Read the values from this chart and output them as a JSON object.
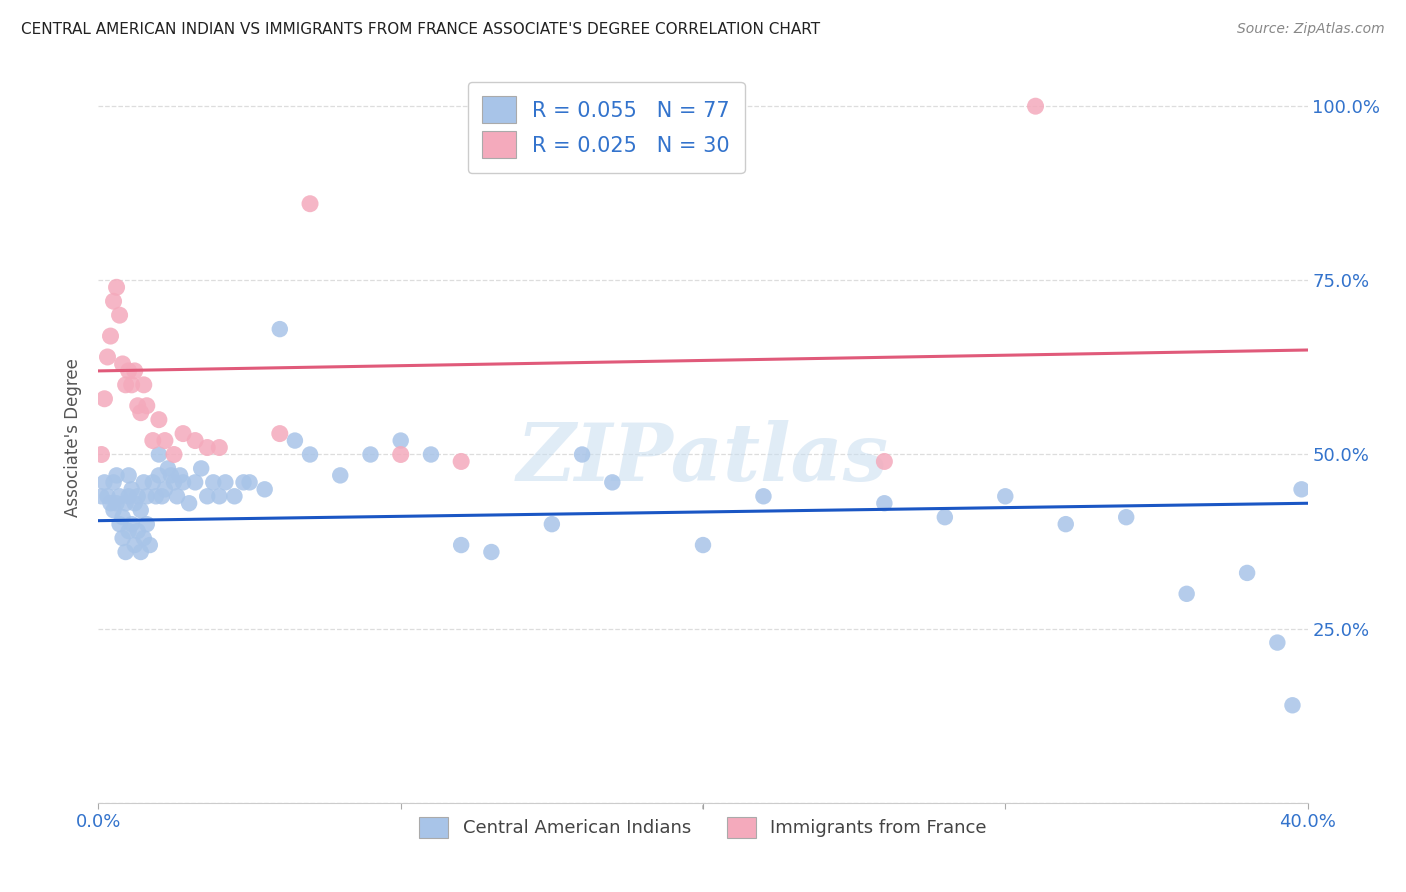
{
  "title": "CENTRAL AMERICAN INDIAN VS IMMIGRANTS FROM FRANCE ASSOCIATE'S DEGREE CORRELATION CHART",
  "source": "Source: ZipAtlas.com",
  "ylabel": "Associate's Degree",
  "xlim": [
    0.0,
    0.4
  ],
  "ylim": [
    0.0,
    1.05
  ],
  "blue_R": 0.055,
  "blue_N": 77,
  "pink_R": 0.025,
  "pink_N": 30,
  "blue_color": "#a8c4e8",
  "pink_color": "#f4aabc",
  "blue_line_color": "#1a56c4",
  "pink_line_color": "#e05a7a",
  "title_color": "#222222",
  "source_color": "#888888",
  "axis_label_color": "#3373cc",
  "watermark_color": "#c8ddf0",
  "watermark": "ZIPatlas",
  "blue_x": [
    0.001,
    0.002,
    0.003,
    0.004,
    0.005,
    0.005,
    0.006,
    0.006,
    0.007,
    0.007,
    0.008,
    0.008,
    0.009,
    0.009,
    0.01,
    0.01,
    0.01,
    0.011,
    0.011,
    0.012,
    0.012,
    0.013,
    0.013,
    0.014,
    0.014,
    0.015,
    0.015,
    0.016,
    0.016,
    0.017,
    0.018,
    0.019,
    0.02,
    0.02,
    0.021,
    0.022,
    0.023,
    0.024,
    0.025,
    0.026,
    0.027,
    0.028,
    0.03,
    0.032,
    0.034,
    0.036,
    0.038,
    0.04,
    0.042,
    0.045,
    0.048,
    0.05,
    0.055,
    0.06,
    0.065,
    0.07,
    0.08,
    0.09,
    0.1,
    0.11,
    0.12,
    0.13,
    0.15,
    0.16,
    0.17,
    0.2,
    0.22,
    0.26,
    0.28,
    0.3,
    0.32,
    0.34,
    0.36,
    0.38,
    0.39,
    0.395,
    0.398
  ],
  "blue_y": [
    0.44,
    0.46,
    0.44,
    0.43,
    0.42,
    0.46,
    0.43,
    0.47,
    0.4,
    0.44,
    0.38,
    0.41,
    0.36,
    0.43,
    0.39,
    0.44,
    0.47,
    0.4,
    0.45,
    0.37,
    0.43,
    0.39,
    0.44,
    0.36,
    0.42,
    0.38,
    0.46,
    0.4,
    0.44,
    0.37,
    0.46,
    0.44,
    0.47,
    0.5,
    0.44,
    0.45,
    0.48,
    0.47,
    0.46,
    0.44,
    0.47,
    0.46,
    0.43,
    0.46,
    0.48,
    0.44,
    0.46,
    0.44,
    0.46,
    0.44,
    0.46,
    0.46,
    0.45,
    0.68,
    0.52,
    0.5,
    0.47,
    0.5,
    0.52,
    0.5,
    0.37,
    0.36,
    0.4,
    0.5,
    0.46,
    0.37,
    0.44,
    0.43,
    0.41,
    0.44,
    0.4,
    0.41,
    0.3,
    0.33,
    0.23,
    0.14,
    0.45
  ],
  "pink_x": [
    0.001,
    0.002,
    0.003,
    0.004,
    0.005,
    0.006,
    0.007,
    0.008,
    0.009,
    0.01,
    0.011,
    0.012,
    0.013,
    0.014,
    0.015,
    0.016,
    0.018,
    0.02,
    0.022,
    0.025,
    0.028,
    0.032,
    0.036,
    0.04,
    0.06,
    0.07,
    0.1,
    0.12,
    0.26,
    0.31
  ],
  "pink_y": [
    0.5,
    0.58,
    0.64,
    0.67,
    0.72,
    0.74,
    0.7,
    0.63,
    0.6,
    0.62,
    0.6,
    0.62,
    0.57,
    0.56,
    0.6,
    0.57,
    0.52,
    0.55,
    0.52,
    0.5,
    0.53,
    0.52,
    0.51,
    0.51,
    0.53,
    0.86,
    0.5,
    0.49,
    0.49,
    1.0
  ],
  "blue_trend_x": [
    0.0,
    0.4
  ],
  "blue_trend_y": [
    0.405,
    0.43
  ],
  "pink_trend_x": [
    0.0,
    0.4
  ],
  "pink_trend_y": [
    0.62,
    0.65
  ],
  "grid_color": "#dddddd",
  "background_color": "#ffffff",
  "legend_label_blue": "Central American Indians",
  "legend_label_pink": "Immigrants from France"
}
